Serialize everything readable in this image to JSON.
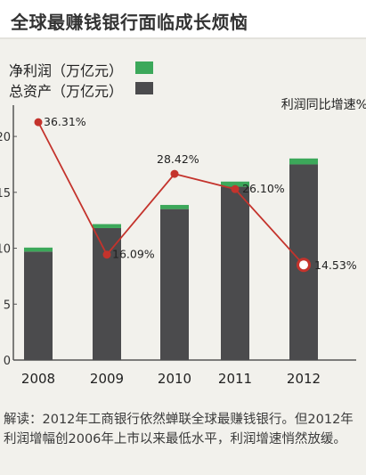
{
  "title": "全球最赚钱银行面临成长烦恼",
  "colors": {
    "profit": "#3ca85a",
    "assets": "#4b4b4d",
    "line": "#c4332c",
    "background": "#f2f1ec"
  },
  "chart_data": {
    "type": "bar",
    "categories": [
      "2008",
      "2009",
      "2010",
      "2011",
      "2012"
    ],
    "series": [
      {
        "name": "总资产（万亿元）",
        "type": "bar",
        "stacked_part": "bottom",
        "values": [
          9.7,
          11.8,
          13.5,
          15.5,
          17.5
        ]
      },
      {
        "name": "净利润（万亿元）",
        "type": "bar",
        "stacked_part": "top",
        "values": [
          0.11,
          0.13,
          0.17,
          0.21,
          0.24
        ]
      },
      {
        "name": "利润同比增速%",
        "type": "line",
        "axis": "secondary",
        "values": [
          36.31,
          16.09,
          28.42,
          26.1,
          14.53
        ],
        "labels": [
          "36.31%",
          "16.09%",
          "28.42%",
          "26.10%",
          "14.53%"
        ]
      }
    ],
    "y_ticks": [
      "0",
      "5",
      "10",
      "15",
      "20"
    ],
    "ylim": [
      0,
      22
    ],
    "y2label": "利润同比增速%",
    "grid": false,
    "legend": "top-left"
  },
  "note": "解读：2012年工商银行依然蝉联全球最赚钱银行。但2012年利润增幅创2006年上市以来最低水平，利润增速悄然放缓。"
}
